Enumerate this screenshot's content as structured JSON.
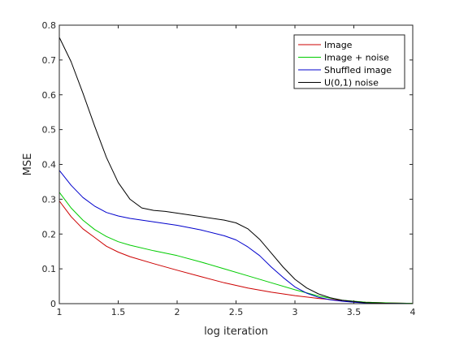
{
  "chart_data": {
    "type": "line",
    "title": "",
    "xlabel": "log iteration",
    "ylabel": "MSE",
    "xlim": [
      1,
      4
    ],
    "ylim": [
      0,
      0.8
    ],
    "x_ticks": [
      1,
      1.5,
      2,
      2.5,
      3,
      3.5,
      4
    ],
    "x_tick_labels": [
      "1",
      "1.5",
      "2",
      "2.5",
      "3",
      "3.5",
      "4"
    ],
    "y_ticks": [
      0,
      0.1,
      0.2,
      0.3,
      0.4,
      0.5,
      0.6,
      0.7,
      0.8
    ],
    "y_tick_labels": [
      "0",
      "0.1",
      "0.2",
      "0.3",
      "0.4",
      "0.5",
      "0.6",
      "0.7",
      "0.8"
    ],
    "grid": false,
    "legend_position": "top-right",
    "series": [
      {
        "name": "Image",
        "color": "#cc0000",
        "x": [
          1.0,
          1.1,
          1.2,
          1.3,
          1.4,
          1.5,
          1.6,
          1.8,
          2.0,
          2.2,
          2.4,
          2.6,
          2.8,
          3.0,
          3.2,
          3.4,
          3.6,
          3.8,
          4.0
        ],
        "y": [
          0.295,
          0.25,
          0.215,
          0.19,
          0.165,
          0.148,
          0.135,
          0.115,
          0.096,
          0.078,
          0.06,
          0.045,
          0.033,
          0.023,
          0.015,
          0.009,
          0.004,
          0.002,
          0.001
        ]
      },
      {
        "name": "Image + noise",
        "color": "#00cc00",
        "x": [
          1.0,
          1.1,
          1.2,
          1.3,
          1.4,
          1.5,
          1.6,
          1.8,
          2.0,
          2.2,
          2.4,
          2.6,
          2.8,
          3.0,
          3.2,
          3.4,
          3.6,
          3.8,
          4.0
        ],
        "y": [
          0.32,
          0.275,
          0.24,
          0.213,
          0.193,
          0.178,
          0.168,
          0.152,
          0.138,
          0.12,
          0.1,
          0.08,
          0.06,
          0.04,
          0.022,
          0.01,
          0.004,
          0.002,
          0.001
        ]
      },
      {
        "name": "Shuffled image",
        "color": "#0000cc",
        "x": [
          1.0,
          1.1,
          1.2,
          1.3,
          1.4,
          1.5,
          1.6,
          1.7,
          1.8,
          2.0,
          2.2,
          2.4,
          2.5,
          2.6,
          2.7,
          2.8,
          2.9,
          3.0,
          3.1,
          3.2,
          3.3,
          3.4,
          3.5,
          3.6,
          3.8,
          4.0
        ],
        "y": [
          0.383,
          0.34,
          0.305,
          0.28,
          0.262,
          0.252,
          0.245,
          0.24,
          0.235,
          0.225,
          0.212,
          0.195,
          0.183,
          0.163,
          0.138,
          0.105,
          0.075,
          0.048,
          0.03,
          0.018,
          0.011,
          0.007,
          0.004,
          0.002,
          0.001,
          0.0
        ]
      },
      {
        "name": "U(0,1) noise",
        "color": "#000000",
        "x": [
          1.0,
          1.1,
          1.2,
          1.3,
          1.4,
          1.5,
          1.6,
          1.7,
          1.8,
          1.9,
          2.0,
          2.2,
          2.4,
          2.5,
          2.6,
          2.7,
          2.8,
          2.9,
          3.0,
          3.1,
          3.2,
          3.3,
          3.4,
          3.5,
          3.6,
          3.8,
          4.0
        ],
        "y": [
          0.765,
          0.695,
          0.605,
          0.51,
          0.42,
          0.348,
          0.3,
          0.275,
          0.268,
          0.265,
          0.26,
          0.25,
          0.24,
          0.232,
          0.215,
          0.185,
          0.145,
          0.105,
          0.07,
          0.045,
          0.028,
          0.017,
          0.01,
          0.006,
          0.003,
          0.001,
          0.0
        ]
      }
    ]
  }
}
